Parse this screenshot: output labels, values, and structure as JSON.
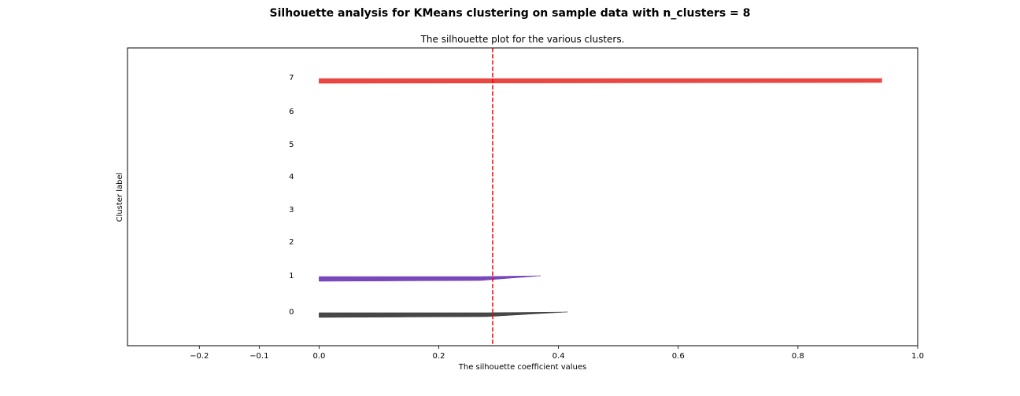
{
  "chart_data": {
    "type": "area",
    "suptitle": "Silhouette analysis for KMeans clustering on sample data with n_clusters = 8",
    "title": "The silhouette plot for the various clusters.",
    "xlabel": "The silhouette coefficient values",
    "ylabel": "Cluster label",
    "xlim": [
      -0.32,
      1.0
    ],
    "xticks": [
      -0.2,
      -0.1,
      0.0,
      0.2,
      0.4,
      0.6,
      0.8,
      1.0
    ],
    "xtick_labels": [
      "−0.2",
      "−0.1",
      "0.0",
      "0.2",
      "0.4",
      "0.6",
      "0.8",
      "1.0"
    ],
    "yticks": [],
    "grid": false,
    "average_silhouette_score": 0.29,
    "average_line_color": "#ff0000",
    "cluster_labels": [
      {
        "label": "0",
        "color": "#333333",
        "band": [
          0.0,
          0.415,
          0.28,
          0.0
        ]
      },
      {
        "label": "1",
        "color": "#6a35b5",
        "band": [
          0.0,
          0.37,
          0.27,
          0.0
        ]
      },
      {
        "label": "2",
        "color": null,
        "band": null
      },
      {
        "label": "3",
        "color": null,
        "band": null
      },
      {
        "label": "4",
        "color": null,
        "band": null
      },
      {
        "label": "5",
        "color": null,
        "band": null
      },
      {
        "label": "6",
        "color": null,
        "band": null
      },
      {
        "label": "7",
        "color": "#e8322e",
        "band": [
          0.0,
          0.94,
          0.94,
          0.0
        ]
      }
    ]
  }
}
